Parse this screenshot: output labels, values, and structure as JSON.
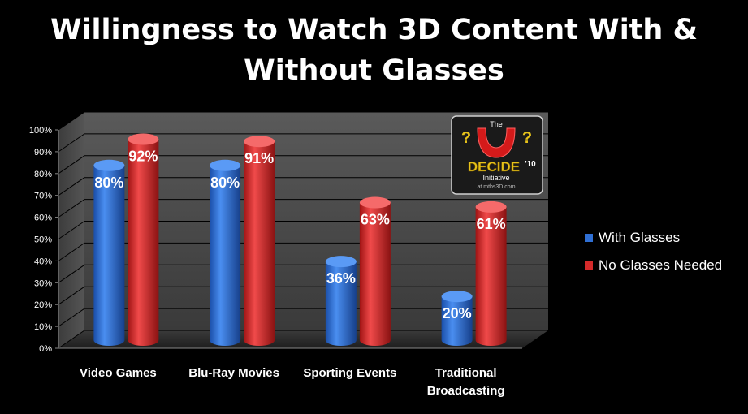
{
  "chart_data": {
    "type": "bar",
    "title": "Willingness to Watch 3D Content With & Without Glasses",
    "title_lines": [
      "Willingness to Watch 3D Content With &",
      "Without Glasses"
    ],
    "categories": [
      "Video Games",
      "Blu-Ray Movies",
      "Sporting Events",
      "Traditional Broadcasting"
    ],
    "category_lines": [
      [
        "Video Games"
      ],
      [
        "Blu-Ray Movies"
      ],
      [
        "Sporting Events"
      ],
      [
        "Traditional",
        "Broadcasting"
      ]
    ],
    "series": [
      {
        "name": "With Glasses",
        "values": [
          80,
          80,
          36,
          20
        ],
        "labels": [
          "80%",
          "80%",
          "36%",
          "20%"
        ],
        "color": "#2f6fd4"
      },
      {
        "name": "No Glasses  Needed",
        "values": [
          92,
          91,
          63,
          61
        ],
        "labels": [
          "92%",
          "91%",
          "63%",
          "61%"
        ],
        "color": "#d42a2a"
      }
    ],
    "yticks": [
      "0%",
      "10%",
      "20%",
      "30%",
      "40%",
      "50%",
      "60%",
      "70%",
      "80%",
      "90%",
      "100%"
    ],
    "ylim": [
      0,
      100
    ],
    "grid": true,
    "legend_position": "right"
  },
  "logo": {
    "top_text": "The",
    "main_text": "DECIDE",
    "year_text": "'10",
    "sub_text": "Initiative",
    "url_text": "at mtbs3D.com"
  }
}
